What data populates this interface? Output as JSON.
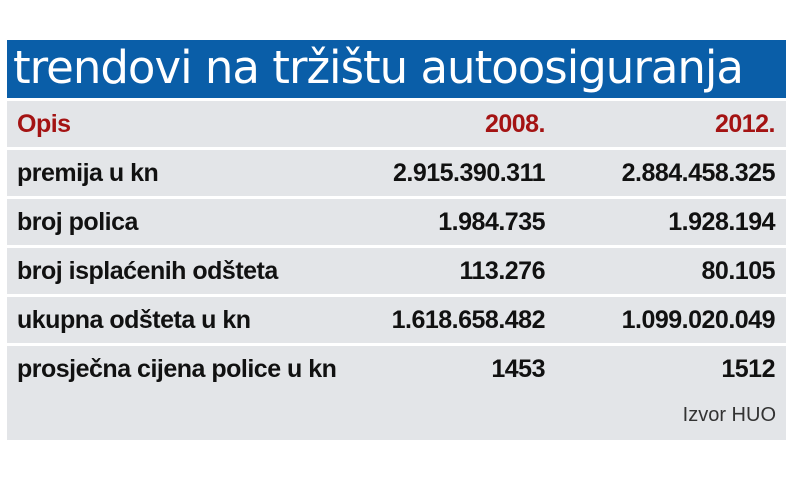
{
  "chart_data": {
    "type": "table",
    "title": "trendovi na tržištu autoosiguranja",
    "columns": [
      "Opis",
      "2008.",
      "2012."
    ],
    "rows": [
      [
        "premija u kn",
        "2.915.390.311",
        "2.884.458.325"
      ],
      [
        "broj polica",
        "1.984.735",
        "1.928.194"
      ],
      [
        "broj isplaćenih odšteta",
        "113.276",
        "80.105"
      ],
      [
        "ukupna odšteta u kn",
        "1.618.658.482",
        "1.099.020.049"
      ],
      [
        "prosječna cijena police u kn",
        "1453",
        "1512"
      ]
    ],
    "source": "Izvor HUO"
  },
  "colors": {
    "title_background": "#0a5ea8",
    "header_text": "#a41313",
    "row_background": "#e3e5e8"
  }
}
